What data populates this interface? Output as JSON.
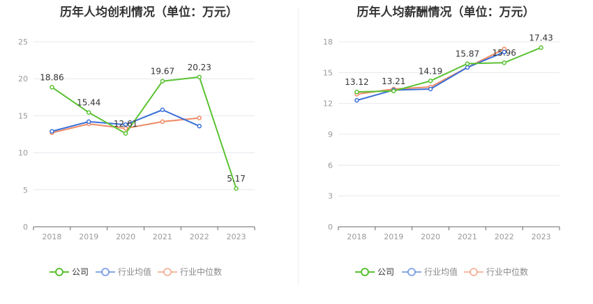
{
  "colors": {
    "company": "#5ac232",
    "industry_avg": "#3a6fd8",
    "industry_median": "#ee8a66",
    "grid": "#e6e8ef",
    "axis": "#999999",
    "text": "#333333"
  },
  "legend_labels": [
    "公司",
    "行业均值",
    "行业中位数"
  ],
  "chart_data": [
    {
      "type": "line",
      "title": "历年人均创利情况（单位：万元）",
      "x": [
        "2018",
        "2019",
        "2020",
        "2021",
        "2022",
        "2023"
      ],
      "ylim": [
        0,
        25
      ],
      "yticks": [
        0,
        5,
        10,
        15,
        20,
        25
      ],
      "grid": true,
      "legend": "bottom",
      "series": [
        {
          "name": "公司",
          "values": [
            18.86,
            15.44,
            12.61,
            19.67,
            20.23,
            5.17
          ],
          "labels": [
            "18.86",
            "15.44",
            "12.61",
            "19.67",
            "20.23",
            "5.17"
          ]
        },
        {
          "name": "行业均值",
          "values": [
            12.9,
            14.2,
            13.8,
            15.8,
            13.6,
            null
          ]
        },
        {
          "name": "行业中位数",
          "values": [
            12.7,
            13.9,
            13.3,
            14.2,
            14.7,
            null
          ]
        }
      ]
    },
    {
      "type": "line",
      "title": "历年人均薪酬情况（单位：万元）",
      "x": [
        "2018",
        "2019",
        "2020",
        "2021",
        "2022",
        "2023"
      ],
      "ylim": [
        0,
        18
      ],
      "yticks": [
        0,
        3,
        6,
        9,
        12,
        15,
        18
      ],
      "grid": true,
      "legend": "bottom",
      "series": [
        {
          "name": "公司",
          "values": [
            13.12,
            13.21,
            14.19,
            15.87,
            15.96,
            17.43
          ],
          "labels": [
            "13.12",
            "13.21",
            "14.19",
            "15.87",
            "15.96",
            "17.43"
          ]
        },
        {
          "name": "行业均值",
          "values": [
            12.3,
            13.3,
            13.4,
            15.5,
            17.0,
            null
          ]
        },
        {
          "name": "行业中位数",
          "values": [
            12.9,
            13.4,
            13.6,
            15.5,
            17.3,
            null
          ]
        }
      ]
    }
  ]
}
